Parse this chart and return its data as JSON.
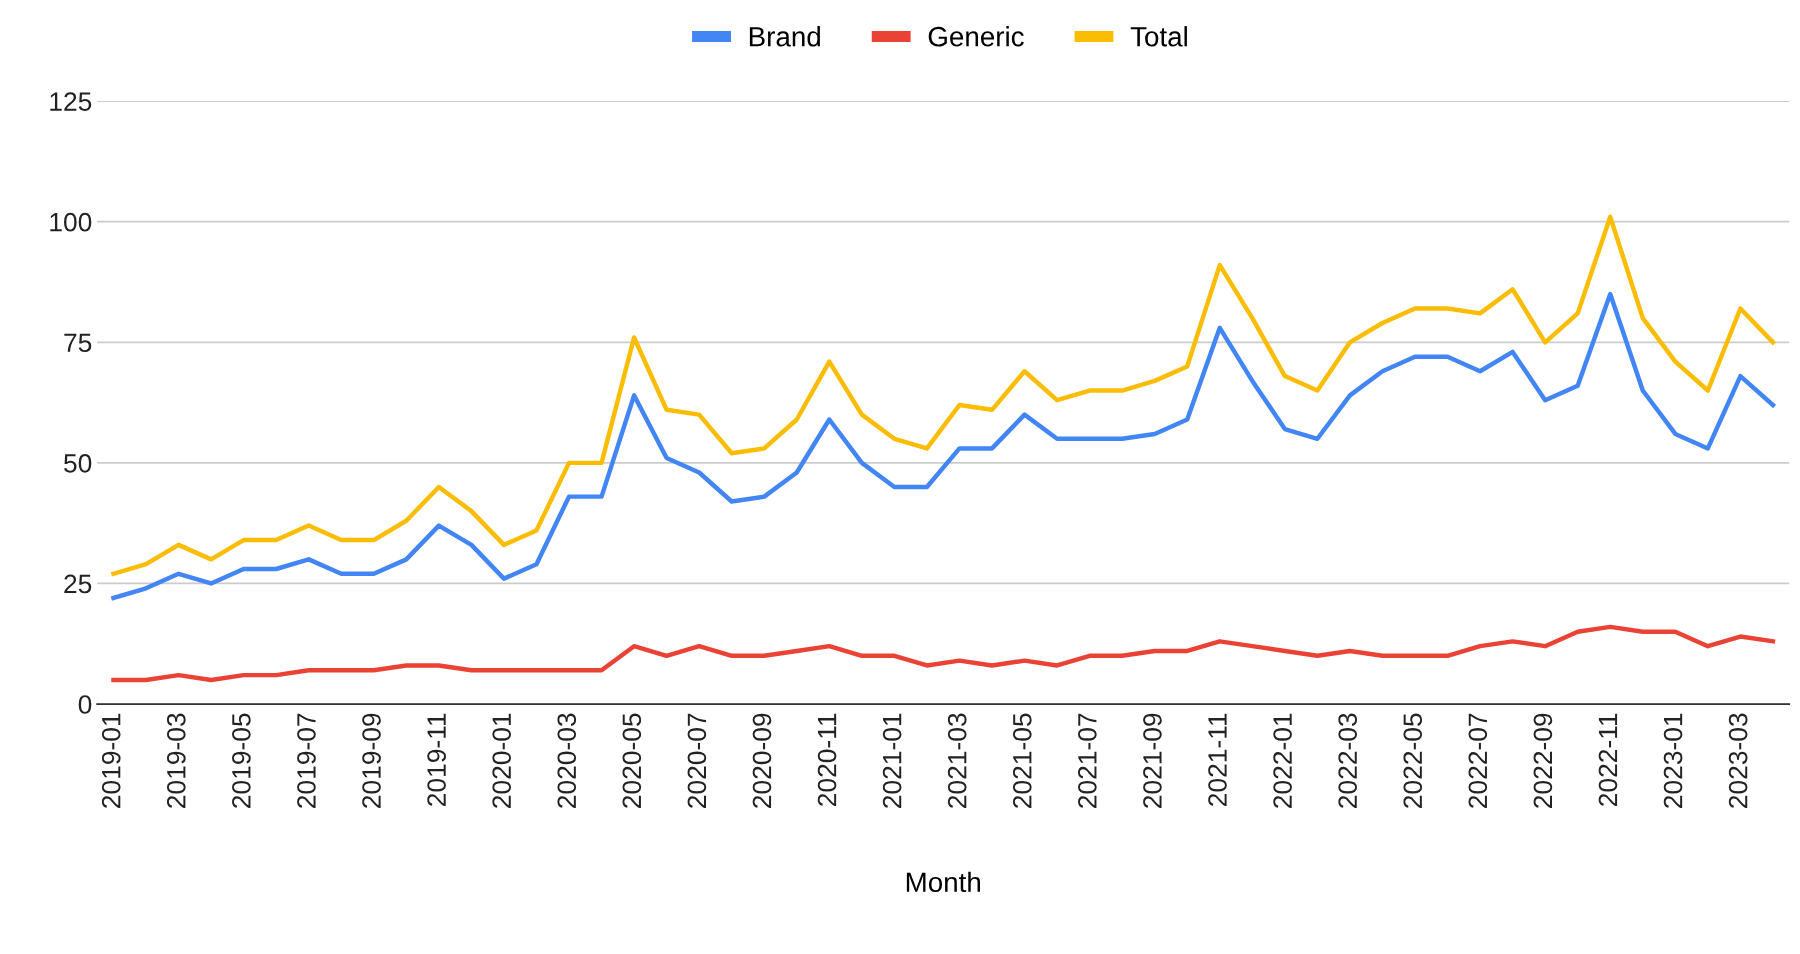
{
  "chart_data": {
    "type": "line",
    "xlabel": "Month",
    "categories": [
      "2019-01",
      null,
      "2019-03",
      null,
      "2019-05",
      null,
      "2019-07",
      null,
      "2019-09",
      null,
      "2019-11",
      null,
      "2020-01",
      null,
      "2020-03",
      null,
      "2020-05",
      null,
      "2020-07",
      null,
      "2020-09",
      null,
      "2020-11",
      null,
      "2021-01",
      null,
      "2021-03",
      null,
      "2021-05",
      null,
      "2021-07",
      null,
      "2021-09",
      null,
      "2021-11",
      null,
      "2022-01",
      null,
      "2022-03",
      null,
      "2022-05",
      null,
      "2022-07",
      null,
      "2022-09",
      null,
      "2022-11",
      null,
      "2023-01",
      null,
      "2023-03",
      null
    ],
    "series": [
      {
        "name": "Brand",
        "color": "#4285f4",
        "values": [
          22,
          24,
          27,
          25,
          28,
          28,
          30,
          27,
          27,
          30,
          37,
          33,
          26,
          29,
          43,
          43,
          64,
          51,
          48,
          42,
          43,
          48,
          59,
          50,
          45,
          45,
          53,
          53,
          60,
          55,
          55,
          55,
          56,
          59,
          78,
          67,
          57,
          55,
          64,
          69,
          72,
          72,
          69,
          73,
          63,
          66,
          85,
          65,
          56,
          53,
          68,
          62
        ]
      },
      {
        "name": "Generic",
        "color": "#ea4335",
        "values": [
          5,
          5,
          6,
          5,
          6,
          6,
          7,
          7,
          7,
          8,
          8,
          7,
          7,
          7,
          7,
          7,
          12,
          10,
          12,
          10,
          10,
          11,
          12,
          10,
          10,
          8,
          9,
          8,
          9,
          8,
          10,
          10,
          11,
          11,
          13,
          12,
          11,
          10,
          11,
          10,
          10,
          10,
          12,
          13,
          12,
          15,
          16,
          15,
          15,
          12,
          14,
          13
        ]
      },
      {
        "name": "Total",
        "color": "#fbbc04",
        "values": [
          27,
          29,
          33,
          30,
          34,
          34,
          37,
          34,
          34,
          38,
          45,
          40,
          33,
          36,
          50,
          50,
          76,
          61,
          60,
          52,
          53,
          59,
          71,
          60,
          55,
          53,
          62,
          61,
          69,
          63,
          65,
          65,
          67,
          70,
          91,
          80,
          68,
          65,
          75,
          79,
          82,
          82,
          81,
          86,
          75,
          81,
          101,
          80,
          71,
          65,
          82,
          75
        ]
      }
    ],
    "ylim": [
      0,
      125
    ],
    "yticks": [
      0,
      25,
      50,
      75,
      100,
      125
    ],
    "grid": "y",
    "legend": "top",
    "line_style": "solid",
    "marker": "none"
  }
}
